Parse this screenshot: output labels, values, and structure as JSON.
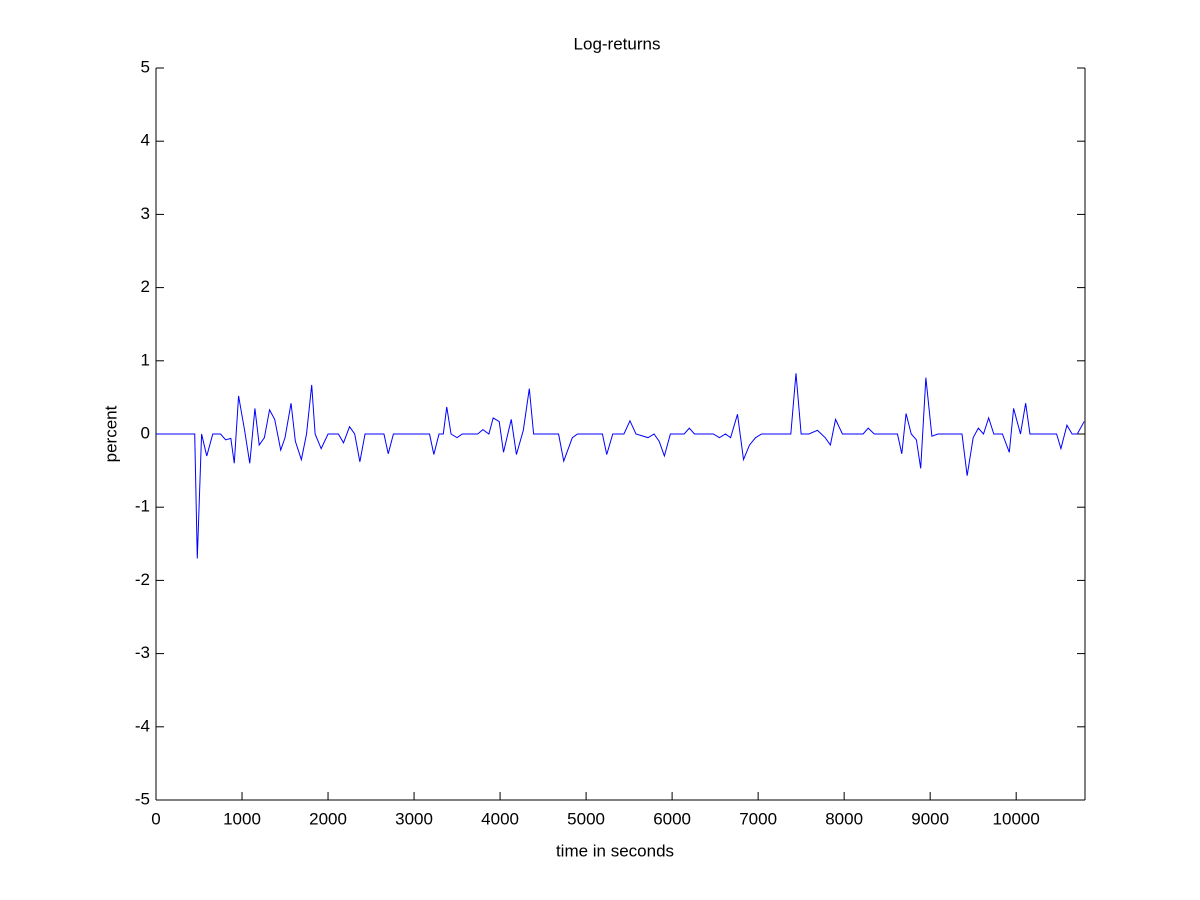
{
  "chart_data": {
    "type": "line",
    "title": "Log-returns",
    "x_label": "time in seconds",
    "y_label": "percent",
    "xlim": [
      0,
      10800
    ],
    "ylim": [
      -5,
      5
    ],
    "xticks": [
      0,
      1000,
      2000,
      3000,
      4000,
      5000,
      6000,
      7000,
      8000,
      9000,
      10000
    ],
    "yticks": [
      -5,
      -4,
      -3,
      -2,
      -1,
      0,
      1,
      2,
      3,
      4,
      5
    ],
    "grid": false,
    "series": [
      {
        "color": "#0000ff",
        "x": [
          0,
          450,
          480,
          530,
          590,
          660,
          750,
          810,
          870,
          910,
          960,
          1030,
          1090,
          1150,
          1200,
          1260,
          1320,
          1380,
          1450,
          1500,
          1570,
          1620,
          1690,
          1750,
          1810,
          1850,
          1920,
          2000,
          2120,
          2180,
          2250,
          2310,
          2370,
          2430,
          2650,
          2700,
          2760,
          3180,
          3230,
          3290,
          3340,
          3380,
          3430,
          3500,
          3560,
          3740,
          3800,
          3870,
          3920,
          3990,
          4040,
          4130,
          4190,
          4270,
          4340,
          4390,
          4680,
          4740,
          4840,
          4900,
          5190,
          5240,
          5310,
          5440,
          5510,
          5580,
          5720,
          5790,
          5850,
          5910,
          5980,
          6140,
          6200,
          6260,
          6480,
          6550,
          6620,
          6680,
          6760,
          6830,
          6900,
          6970,
          7040,
          7380,
          7440,
          7500,
          7590,
          7690,
          7780,
          7840,
          7900,
          7980,
          8220,
          8280,
          8350,
          8620,
          8670,
          8720,
          8780,
          8840,
          8890,
          8950,
          9020,
          9090,
          9370,
          9430,
          9500,
          9560,
          9620,
          9680,
          9740,
          9840,
          9920,
          9970,
          10050,
          10110,
          10160,
          10470,
          10520,
          10590,
          10650,
          10710,
          10790
        ],
        "values": [
          0,
          0,
          -1.7,
          0,
          -0.3,
          0,
          0,
          -0.08,
          -0.06,
          -0.4,
          0.52,
          0.05,
          -0.4,
          0.35,
          -0.15,
          -0.05,
          0.33,
          0.2,
          -0.22,
          -0.05,
          0.42,
          -0.1,
          -0.35,
          0,
          0.67,
          0,
          -0.2,
          0,
          0,
          -0.12,
          0.1,
          0,
          -0.38,
          0,
          0,
          -0.27,
          0,
          0,
          -0.28,
          0,
          0,
          0.37,
          0,
          -0.05,
          0,
          0,
          0.06,
          0,
          0.22,
          0.17,
          -0.25,
          0.2,
          -0.28,
          0.05,
          0.62,
          0,
          0,
          -0.37,
          -0.05,
          0,
          0,
          -0.28,
          0,
          0,
          0.18,
          0,
          -0.05,
          0,
          -0.1,
          -0.3,
          0,
          0,
          0.08,
          0,
          0,
          -0.05,
          0,
          -0.05,
          0.27,
          -0.35,
          -0.15,
          -0.05,
          0,
          0,
          0.83,
          0,
          0,
          0.05,
          -0.05,
          -0.15,
          0.2,
          0,
          0,
          0.08,
          0,
          0,
          -0.27,
          0.28,
          0,
          -0.08,
          -0.47,
          0.77,
          -0.03,
          0,
          0,
          -0.57,
          -0.05,
          0.08,
          0,
          0.22,
          0,
          0,
          -0.25,
          0.35,
          0,
          0.42,
          0,
          0,
          -0.2,
          0.12,
          0,
          0,
          0.17
        ]
      }
    ]
  }
}
